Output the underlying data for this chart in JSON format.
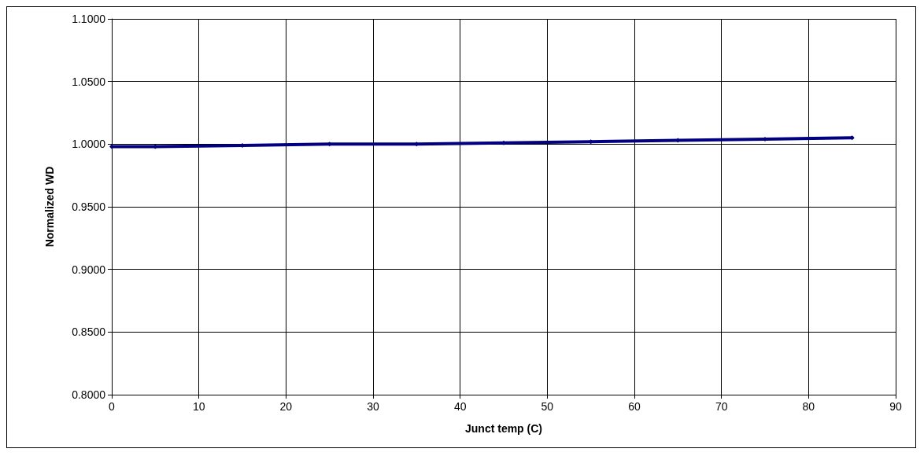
{
  "chart_data": {
    "type": "line",
    "xlabel": "Junct temp (C)",
    "ylabel": "Normalized WD",
    "x": [
      0,
      5,
      15,
      25,
      35,
      45,
      55,
      65,
      75,
      85
    ],
    "series": [
      {
        "color": "#000080",
        "values": [
          0.998,
          0.998,
          0.999,
          1.0,
          1.0,
          1.001,
          1.002,
          1.003,
          1.004,
          1.005
        ]
      }
    ],
    "xlim": [
      0,
      90
    ],
    "xticks": [
      0,
      10,
      20,
      30,
      40,
      50,
      60,
      70,
      80,
      90
    ],
    "ylim": [
      0.8,
      1.1
    ],
    "yticks": [
      {
        "value": 0.8,
        "label": "0.8000"
      },
      {
        "value": 0.85,
        "label": "0.8500"
      },
      {
        "value": 0.9,
        "label": "0.9000"
      },
      {
        "value": 0.95,
        "label": "0.9500"
      },
      {
        "value": 1.0,
        "label": "1.0000"
      },
      {
        "value": 1.05,
        "label": "1.0500"
      },
      {
        "value": 1.1,
        "label": "1.1000"
      }
    ],
    "grid": true,
    "marker": "diamond",
    "line_style": "solid"
  }
}
